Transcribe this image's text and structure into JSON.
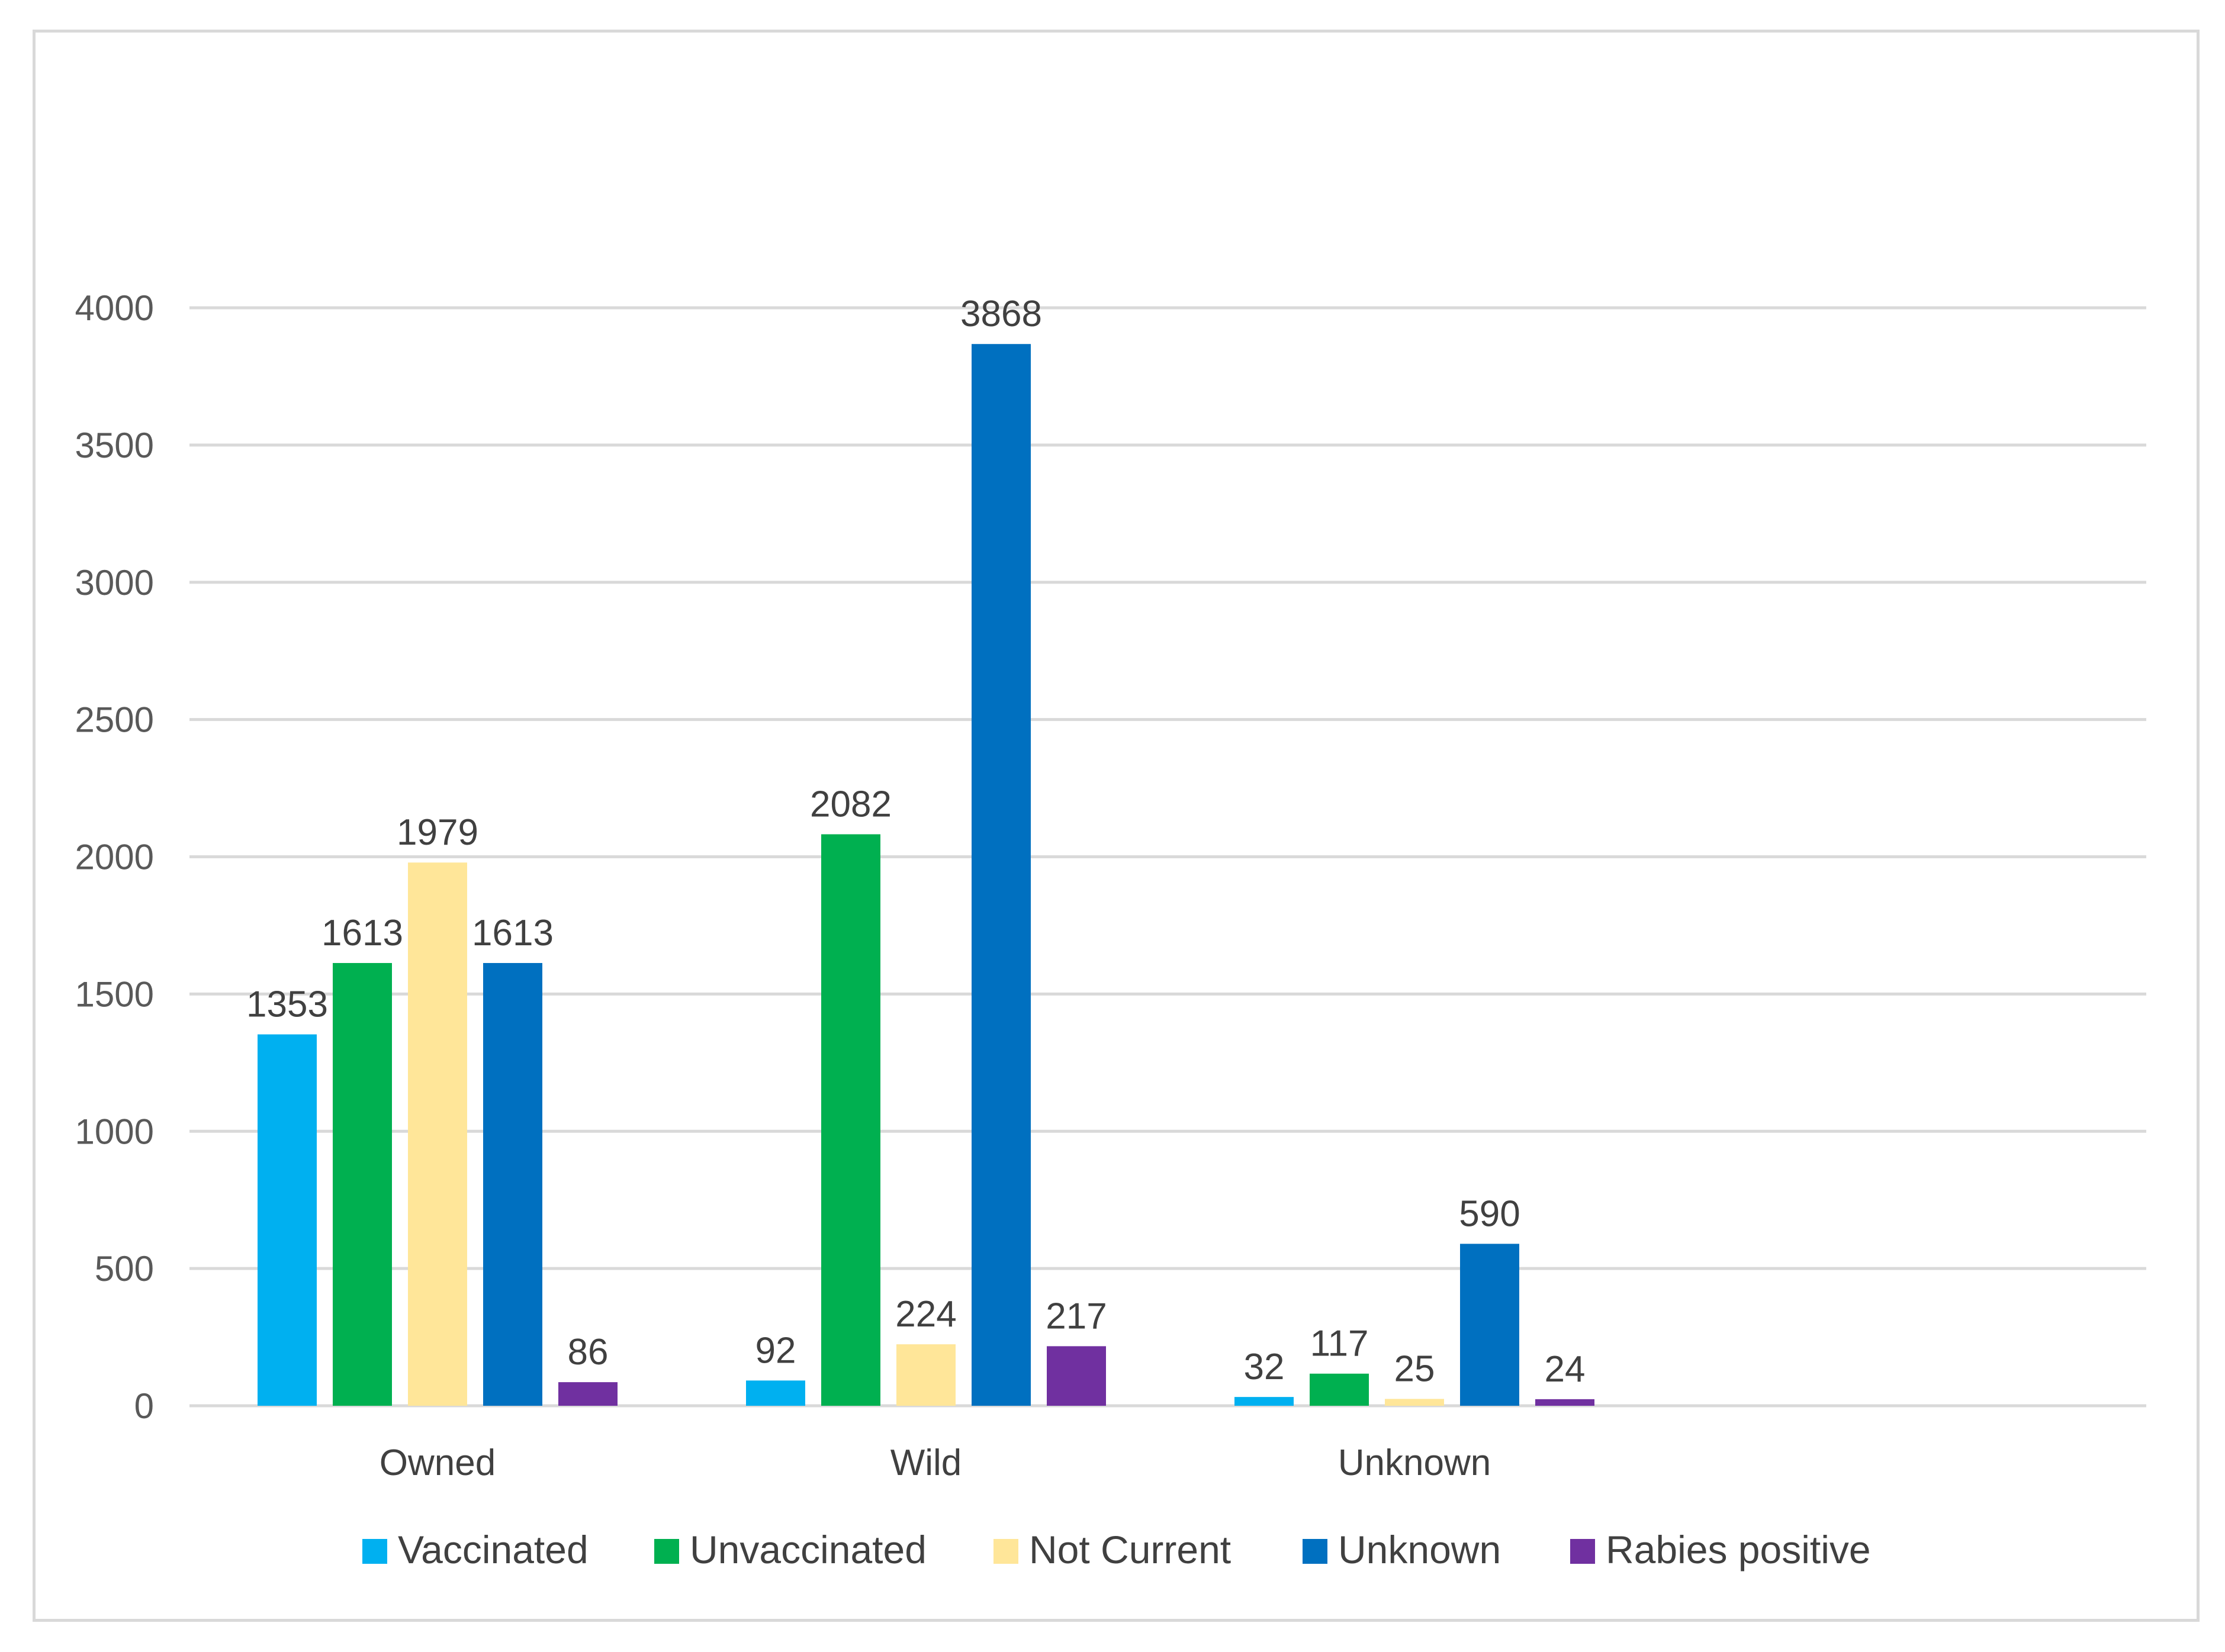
{
  "chart_data": {
    "type": "bar",
    "title": "",
    "xlabel": "",
    "ylabel": "",
    "categories": [
      "Owned",
      "Wild",
      "Unknown"
    ],
    "ylim": [
      0,
      4000
    ],
    "yticks": [
      0,
      500,
      1000,
      1500,
      2000,
      2500,
      3000,
      3500,
      4000
    ],
    "grid": true,
    "legend_position": "bottom",
    "series": [
      {
        "name": "Vaccinated",
        "color": "#00b0f0",
        "values": [
          1353,
          92,
          32
        ]
      },
      {
        "name": "Unvaccinated",
        "color": "#00b050",
        "values": [
          1613,
          2082,
          117
        ]
      },
      {
        "name": "Not Current",
        "color": "#ffe699",
        "values": [
          1979,
          224,
          25
        ]
      },
      {
        "name": "Unknown",
        "color": "#0070c0",
        "values": [
          1613,
          3868,
          590
        ]
      },
      {
        "name": "Rabies positive",
        "color": "#7030a0",
        "values": [
          86,
          217,
          24
        ]
      }
    ]
  }
}
